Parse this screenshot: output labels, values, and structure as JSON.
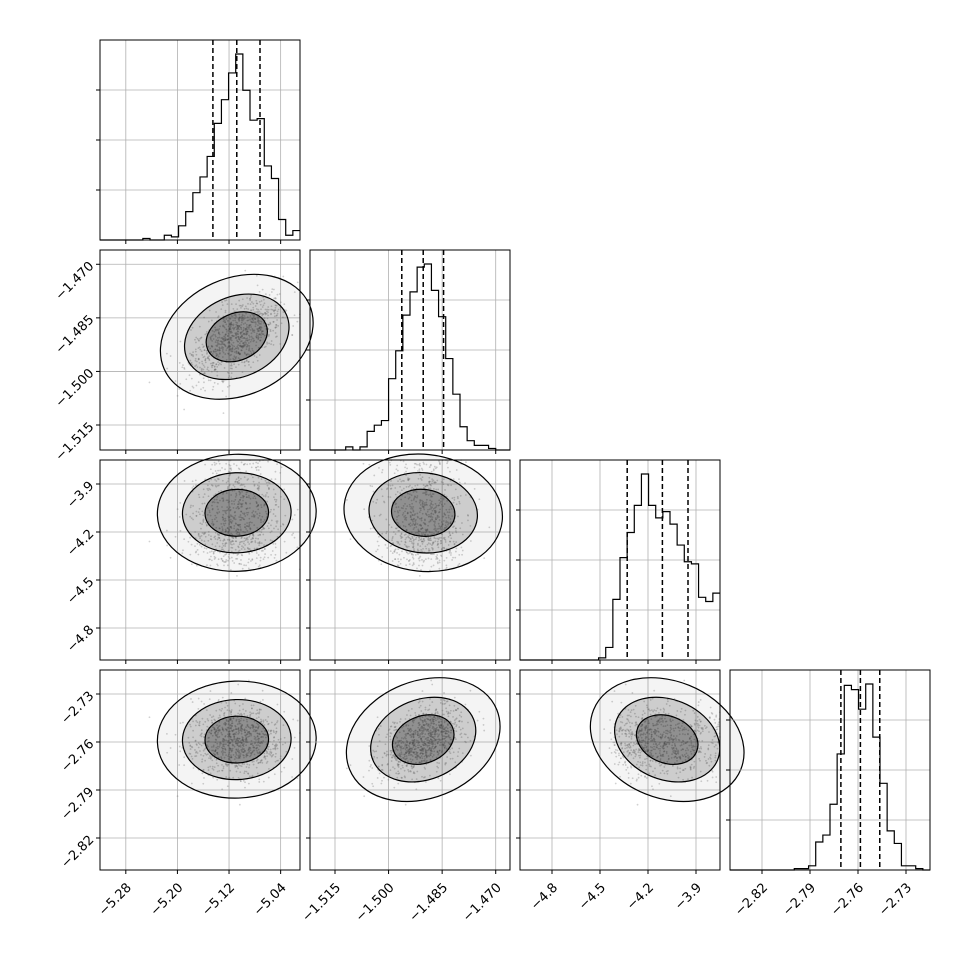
{
  "chart_data": {
    "type": "corner",
    "grid": true,
    "colors": {
      "line": "#000000",
      "grid": "#b0b0b0",
      "background": "#ffffff",
      "points": "#7a7a7a"
    },
    "params": [
      {
        "ticks": [
          -5.28,
          -5.2,
          -5.12,
          -5.04
        ],
        "tick_labels": [
          "−5.28",
          "−5.20",
          "−5.12",
          "−5.04"
        ],
        "range": [
          -5.32,
          -5.01
        ],
        "quantiles": [
          -5.145,
          -5.108,
          -5.072
        ],
        "mean": -5.108,
        "sd": 0.036,
        "skew": 0,
        "hist_max": 0.55
      },
      {
        "ticks": [
          -1.515,
          -1.5,
          -1.485,
          -1.47
        ],
        "tick_labels": [
          "−1.515",
          "−1.500",
          "−1.485",
          "−1.470"
        ],
        "range": [
          -1.522,
          -1.466
        ],
        "quantiles": [
          -1.4963,
          -1.4903,
          -1.4846
        ],
        "mean": -1.4903,
        "sd": 0.006,
        "skew": 0,
        "hist_max": 0.55
      },
      {
        "ticks": [
          -4.8,
          -4.5,
          -4.2,
          -3.9
        ],
        "tick_labels": [
          "−4.8",
          "−4.5",
          "−4.2",
          "−3.9"
        ],
        "range": [
          -5.0,
          -3.75
        ],
        "quantiles": [
          -4.33,
          -4.11,
          -3.95
        ],
        "mean": -4.08,
        "sd": 0.21,
        "skew": -5,
        "hist_max": 0.83
      },
      {
        "ticks": [
          -2.82,
          -2.79,
          -2.76,
          -2.73
        ],
        "tick_labels": [
          "−2.82",
          "−2.79",
          "−2.76",
          "−2.73"
        ],
        "range": [
          -2.84,
          -2.715
        ],
        "quantiles": [
          -2.7707,
          -2.7585,
          -2.7464
        ],
        "mean": -2.7585,
        "sd": 0.0125,
        "skew": 0,
        "hist_max": 0.55
      }
    ],
    "correlations": [
      [
        1,
        0.6,
        0.05,
        0.05
      ],
      [
        0.6,
        1,
        -0.15,
        0.55
      ],
      [
        0.05,
        -0.15,
        1,
        -0.55
      ],
      [
        0.05,
        0.55,
        -0.55,
        1
      ]
    ],
    "samples": 900
  }
}
